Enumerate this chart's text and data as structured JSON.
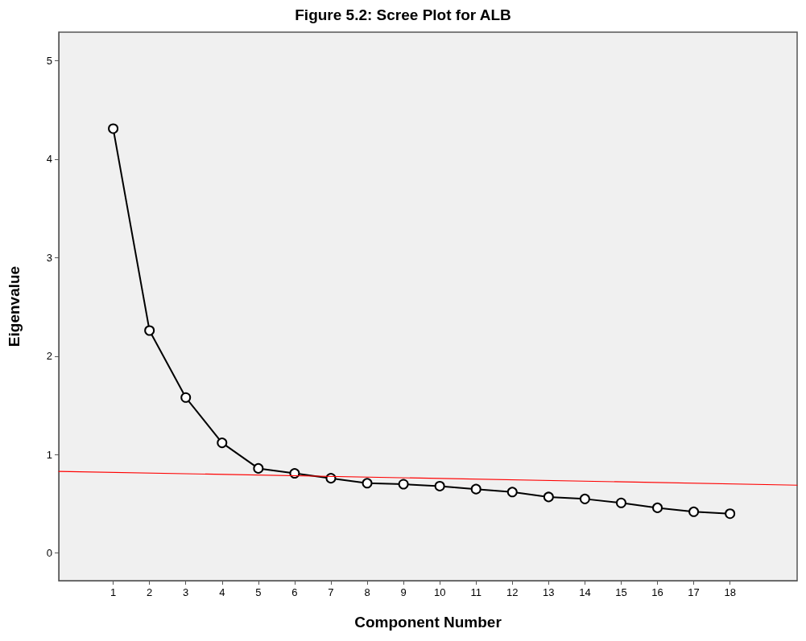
{
  "chart_data": {
    "type": "line",
    "title": "Figure 5.2: Scree Plot for ALB",
    "xlabel": "Component Number",
    "ylabel": "Eigenvalue",
    "x": [
      1,
      2,
      3,
      4,
      5,
      6,
      7,
      8,
      9,
      10,
      11,
      12,
      13,
      14,
      15,
      16,
      17,
      18
    ],
    "series": [
      {
        "color": "#000000",
        "values": [
          4.31,
          2.26,
          1.58,
          1.12,
          0.86,
          0.81,
          0.76,
          0.71,
          0.7,
          0.68,
          0.65,
          0.62,
          0.57,
          0.55,
          0.51,
          0.46,
          0.42,
          0.4
        ],
        "marker": "circle"
      },
      {
        "color": "#ff0000",
        "x": [
          -0.5,
          19.85
        ],
        "values": [
          0.83,
          0.69
        ],
        "marker": "none"
      }
    ],
    "xlim": [
      -0.5,
      19.85
    ],
    "xticks": [
      1,
      2,
      3,
      4,
      5,
      6,
      7,
      8,
      9,
      10,
      11,
      12,
      13,
      14,
      15,
      16,
      17,
      18
    ],
    "ylim": [
      -0.28,
      5.29
    ],
    "yticks": [
      0,
      1,
      2,
      3,
      4,
      5
    ],
    "grid": false,
    "line_style": "solid"
  }
}
